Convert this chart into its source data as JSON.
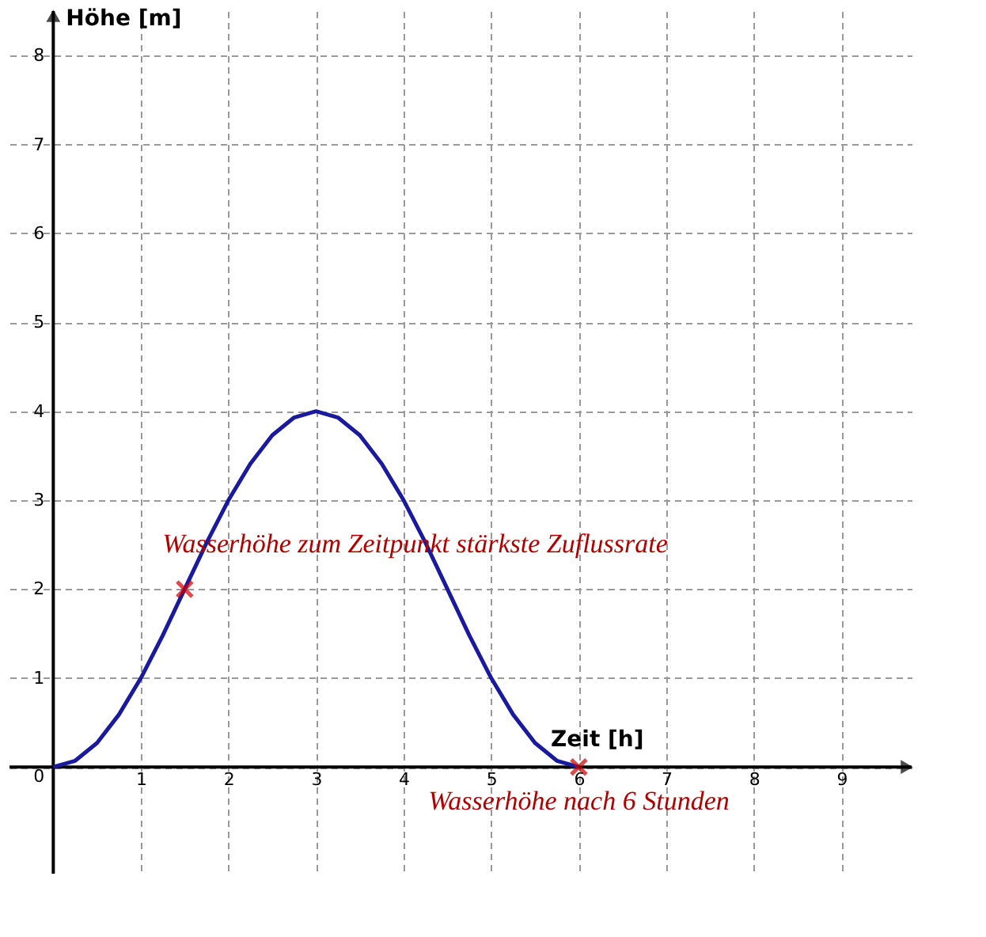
{
  "chart_data": {
    "type": "line",
    "xlabel": "Zeit [h]",
    "ylabel": "Höhe [m]",
    "xlim": [
      -0.5,
      9.8
    ],
    "ylim": [
      -1.2,
      8.5
    ],
    "xticks": [
      1,
      2,
      3,
      4,
      5,
      6,
      7,
      8,
      9
    ],
    "yticks": [
      0,
      1,
      2,
      3,
      4,
      5,
      6,
      7,
      8
    ],
    "grid": true,
    "series": [
      {
        "color": "#1a1a9e",
        "marker": "none",
        "line_style": "solid",
        "x": [
          0,
          0.25,
          0.5,
          0.75,
          1,
          1.25,
          1.5,
          1.75,
          2,
          2.25,
          2.5,
          2.75,
          3,
          3.25,
          3.5,
          3.75,
          4,
          4.25,
          4.5,
          4.75,
          5,
          5.25,
          5.5,
          5.75,
          6
        ],
        "values": [
          0,
          0.07,
          0.27,
          0.59,
          1.0,
          1.48,
          2.0,
          2.52,
          3.0,
          3.41,
          3.73,
          3.93,
          4.0,
          3.93,
          3.73,
          3.41,
          3.0,
          2.52,
          2.0,
          1.48,
          1.0,
          0.59,
          0.27,
          0.07,
          0
        ]
      },
      {
        "type": "scatter",
        "color": "#cc0000",
        "marker": "cross",
        "x": [
          1.5,
          6
        ],
        "values": [
          2,
          0
        ]
      }
    ],
    "annotations": [
      {
        "text": "Wasserhöhe zum Zeitpunkt stärkste Zuflussrate",
        "x": 1.5,
        "y": 2
      },
      {
        "text": "Wasserhöhe nach 6 Stunden",
        "x": 6,
        "y": 0
      }
    ]
  }
}
